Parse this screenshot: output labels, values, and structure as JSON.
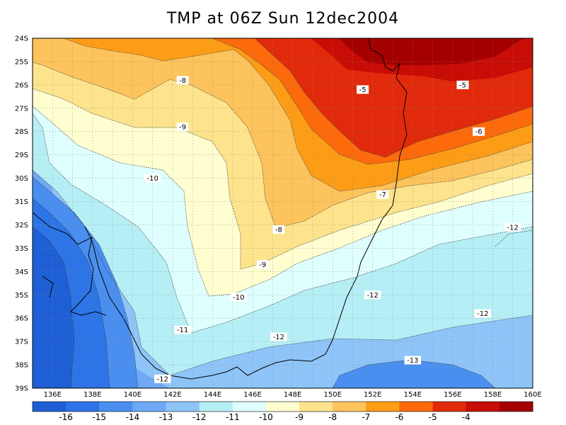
{
  "title": "TMP at 06Z Sun 12dec2004",
  "lat_labels": [
    "24S",
    "25S",
    "26S",
    "27S",
    "28S",
    "29S",
    "30S",
    "31S",
    "32S",
    "33S",
    "34S",
    "35S",
    "36S",
    "37S",
    "38S",
    "39S"
  ],
  "lon_labels": [
    "136E",
    "138E",
    "140E",
    "142E",
    "144E",
    "146E",
    "148E",
    "150E",
    "152E",
    "154E",
    "156E",
    "158E",
    "160E"
  ],
  "colorbar": {
    "colors": [
      "#1e5fd6",
      "#2d74e6",
      "#4a8ff0",
      "#6fa9f5",
      "#8ec4f8",
      "#b6eef5",
      "#dffefe",
      "#fefed0",
      "#fde38c",
      "#fdc35c",
      "#fd9d16",
      "#fc6a0c",
      "#e12a0b",
      "#c70d06",
      "#a40000"
    ],
    "labels": [
      "-16",
      "-15",
      "-14",
      "-13",
      "-12",
      "-11",
      "-10",
      "-9",
      "-8",
      "-7",
      "-6",
      "-5",
      "-4"
    ]
  },
  "contour_labels": [
    {
      "text": "-8",
      "lon": 142.5,
      "lat": 25.8
    },
    {
      "text": "-9",
      "lon": 142.5,
      "lat": 27.8
    },
    {
      "text": "-10",
      "lon": 141.0,
      "lat": 30.0
    },
    {
      "text": "-5",
      "lon": 151.5,
      "lat": 26.2
    },
    {
      "text": "-5",
      "lon": 156.5,
      "lat": 26.0
    },
    {
      "text": "-6",
      "lon": 157.3,
      "lat": 28.0
    },
    {
      "text": "-7",
      "lon": 152.5,
      "lat": 30.7
    },
    {
      "text": "-8",
      "lon": 147.3,
      "lat": 32.2
    },
    {
      "text": "-9",
      "lon": 146.5,
      "lat": 33.7
    },
    {
      "text": "-10",
      "lon": 145.3,
      "lat": 35.1
    },
    {
      "text": "-11",
      "lon": 142.5,
      "lat": 36.5
    },
    {
      "text": "-12",
      "lon": 147.3,
      "lat": 36.8
    },
    {
      "text": "-12",
      "lon": 152.0,
      "lat": 35.0
    },
    {
      "text": "-12",
      "lon": 157.5,
      "lat": 35.8
    },
    {
      "text": "-12",
      "lon": 159.0,
      "lat": 32.1
    },
    {
      "text": "-13",
      "lon": 154.0,
      "lat": 37.8
    },
    {
      "text": "-12",
      "lon": 141.5,
      "lat": 38.6
    }
  ]
}
